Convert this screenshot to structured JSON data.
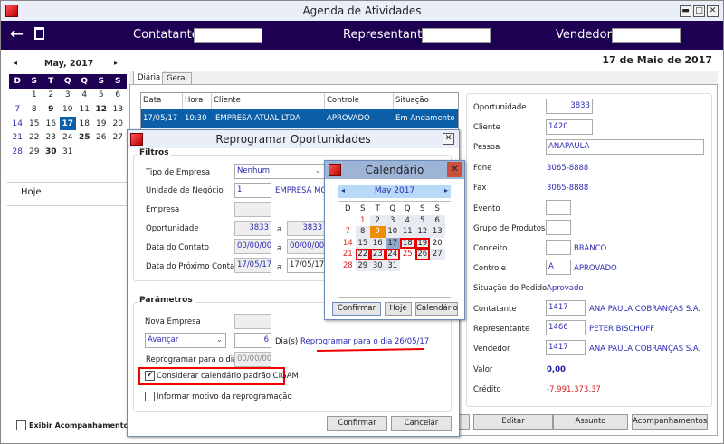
{
  "window": {
    "title": "Agenda de Atividades",
    "minimize": "▬",
    "maximize": "□",
    "close": "✕"
  },
  "header": {
    "back_icon": "arrow-left",
    "trash_icon": "trash",
    "contatante_label": "Contatante",
    "representante_label": "Representante",
    "vendedor_label": "Vendedor",
    "contatante_value": "",
    "representante_value": "",
    "vendedor_value": ""
  },
  "mini_calendar": {
    "month": "May, 2017",
    "prev": "◂",
    "next": "▸",
    "weekdays": [
      "D",
      "S",
      "T",
      "Q",
      "Q",
      "S",
      "S"
    ],
    "weeks": [
      [
        "",
        "1",
        "2",
        "3",
        "4",
        "5",
        "6"
      ],
      [
        "7",
        "8",
        "9",
        "10",
        "11",
        "12",
        "13"
      ],
      [
        "14",
        "15",
        "16",
        "17",
        "18",
        "19",
        "20"
      ],
      [
        "21",
        "22",
        "23",
        "24",
        "25",
        "26",
        "27"
      ],
      [
        "28",
        "29",
        "30",
        "31",
        "",
        "",
        ""
      ]
    ],
    "bold_days": [
      "9",
      "12",
      "17",
      "25",
      "30"
    ],
    "selected_day": "17"
  },
  "sidebar": {
    "today": "Hoje",
    "show_followups": "Exibir Acompanhamentos"
  },
  "current_date": "17 de Maio de 2017",
  "tabs": [
    {
      "label": "Diária",
      "active": true
    },
    {
      "label": "Geral",
      "active": false
    }
  ],
  "grid": {
    "columns": [
      "Data",
      "Hora",
      "Cliente",
      "Controle",
      "Situação"
    ],
    "rows": [
      [
        "17/05/17",
        "10:30",
        "EMPRESA ATUAL LTDA",
        "APROVADO",
        "Em Andamento"
      ]
    ]
  },
  "details": {
    "oportunidade_label": "Oportunidade",
    "oportunidade": "3833",
    "cliente_label": "Cliente",
    "cliente": "1420",
    "pessoa_label": "Pessoa",
    "pessoa": "ANAPAULA",
    "fone_label": "Fone",
    "fone": "3065-8888",
    "fax_label": "Fax",
    "fax": "3065-8888",
    "evento_label": "Evento",
    "evento": "",
    "grupo_label": "Grupo de Produtos",
    "grupo": "",
    "conceito_label": "Conceito",
    "conceito": "",
    "conceito_desc": "BRANCO",
    "controle_label": "Controle",
    "controle": "A",
    "controle_desc": "APROVADO",
    "situacao_label": "Situação do Pedido",
    "situacao": "Aprovado",
    "contatante_label": "Contatante",
    "contatante": "1417",
    "contatante_desc": "ANA PAULA COBRANÇAS S.A.",
    "representante_label": "Representante",
    "representante": "1466",
    "representante_desc": "PETER BISCHOFF",
    "vendedor_label": "Vendedor",
    "vendedor": "1417",
    "vendedor_desc": "ANA PAULA COBRANÇAS S.A.",
    "valor_label": "Valor",
    "valor": "0,00",
    "credito_label": "Crédito",
    "credito": "-7.991.373,37"
  },
  "actions": {
    "editar": "Editar",
    "assunto": "Assunto",
    "acompanhamentos": "Acompanhamentos"
  },
  "reprogramar": {
    "title": "Reprogramar Oportunidades",
    "close": "✕",
    "filtros": "Filtros",
    "tipo_empresa_label": "Tipo de Empresa",
    "tipo_empresa": "Nenhum",
    "unidade_label": "Unidade de Negócio",
    "unidade": "1",
    "unidade_desc": "EMPRESA MOD",
    "empresa_label": "Empresa",
    "empresa": "",
    "oportunidade_label": "Oportunidade",
    "oport_de": "3833",
    "oport_ate": "3833",
    "a": "a",
    "data_contato_label": "Data do Contato",
    "contato_de": "00/00/00",
    "contato_ate": "00/00/00",
    "prox_contato_label": "Data do Próximo Contato",
    "prox_de": "17/05/17",
    "prox_ate": "17/05/17",
    "parametros": "Parâmetros",
    "nova_empresa_label": "Nova Empresa",
    "nova_empresa": "",
    "acao": "Avançar",
    "dias": "6",
    "dias_label": "Dia(s)",
    "reprogramar_msg": "Reprogramar para o dia 26/05/17",
    "reprogramar_dia_label": "Reprogramar para o dia",
    "reprogramar_dia": "00/00/00",
    "considerar_calendario": "Considerar calendário padrão CIGAM",
    "considerar_checked": true,
    "informar_motivo": "Informar motivo da reprogramação",
    "informar_checked": false,
    "confirmar": "Confirmar",
    "cancelar": "Cancelar"
  },
  "calendario": {
    "title": "Calendário",
    "close": "✕",
    "month": "May 2017",
    "weekdays": [
      "D",
      "S",
      "T",
      "Q",
      "Q",
      "S",
      "S"
    ],
    "weeks": [
      [
        "",
        "1",
        "2",
        "3",
        "4",
        "5",
        "6"
      ],
      [
        "7",
        "8",
        "9",
        "10",
        "11",
        "12",
        "13"
      ],
      [
        "14",
        "15",
        "16",
        "17",
        "18",
        "19",
        "20"
      ],
      [
        "21",
        "22",
        "23",
        "24",
        "25",
        "26",
        "27"
      ],
      [
        "28",
        "29",
        "30",
        "31",
        "",
        "",
        ""
      ]
    ],
    "red_days": [
      "1",
      "7",
      "14",
      "21",
      "25",
      "28"
    ],
    "holiday_day": "9",
    "selected_day": "17",
    "marked_days": [
      "18",
      "19",
      "22",
      "23",
      "24",
      "26"
    ],
    "confirmar": "Confirmar",
    "hoje": "Hoje",
    "calendario": "Calendário"
  },
  "colors": {
    "header": "#1d0052",
    "selection": "#0a5fa8",
    "link": "#2a2ab0",
    "negative": "#d22222",
    "highlight": "#ff0000",
    "holiday": "#f08c00"
  }
}
